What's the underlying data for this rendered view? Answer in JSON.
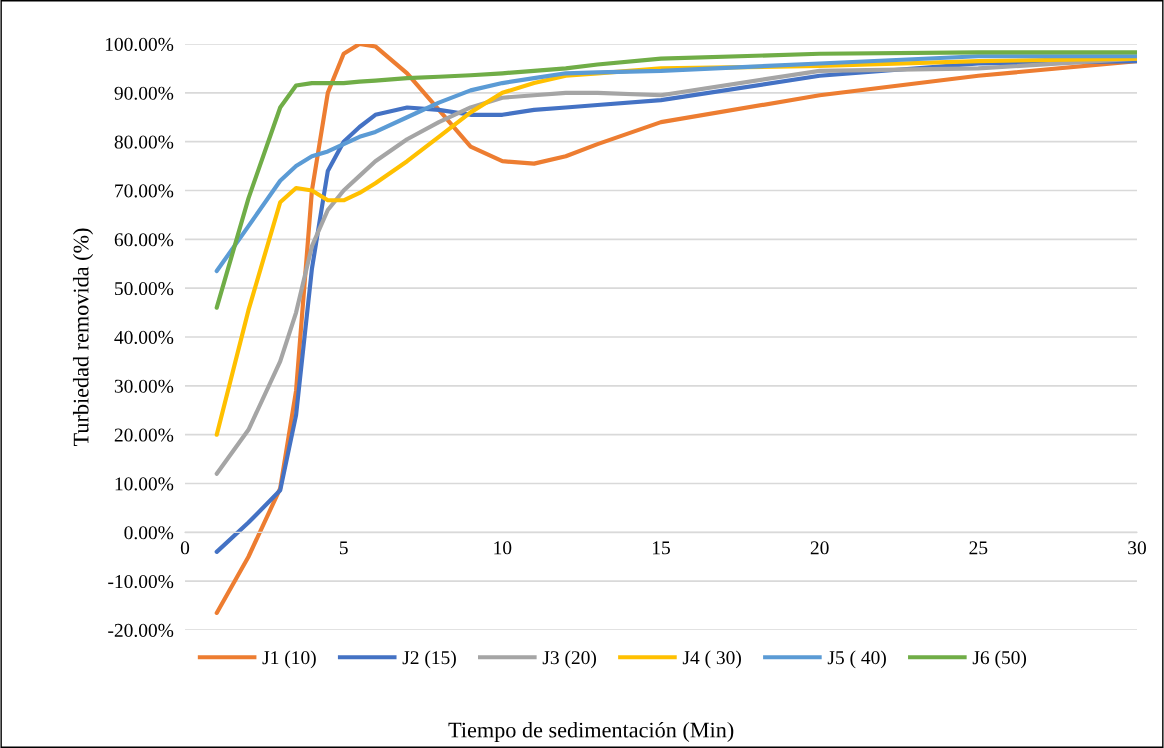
{
  "chart_data": {
    "type": "line",
    "xlabel": "Tiempo de sedimentación (Min)",
    "ylabel": "Turbiedad removida (%)",
    "x": [
      1,
      2,
      3,
      3.5,
      4,
      4.5,
      5,
      5.5,
      6,
      7,
      8,
      9,
      10,
      11,
      12,
      13,
      15,
      20,
      25,
      30
    ],
    "series": [
      {
        "name": "J1 (10)",
        "color": "#ed7d31",
        "values": [
          -16.5,
          -5,
          9,
          29,
          70,
          90,
          98,
          100,
          99.5,
          94,
          86.5,
          79,
          76,
          75.5,
          77,
          79.5,
          84,
          89.5,
          93.5,
          96.5
        ]
      },
      {
        "name": "J2 (15)",
        "color": "#4472c4",
        "values": [
          -4,
          2,
          8.6,
          24,
          54,
          74,
          80,
          83,
          85.5,
          87,
          86.5,
          85.5,
          85.5,
          86.5,
          87,
          87.5,
          88.5,
          93.5,
          96,
          96.5
        ]
      },
      {
        "name": "J3 (20)",
        "color": "#a5a5a5",
        "values": [
          12,
          21,
          35,
          45,
          58.6,
          66,
          70,
          73,
          76,
          80.5,
          84,
          87,
          89,
          89.5,
          90,
          90,
          89.5,
          94.5,
          95,
          97
        ]
      },
      {
        "name": "J4 ( 30)",
        "color": "#ffc000",
        "values": [
          20,
          45.5,
          67.6,
          70.5,
          70,
          68,
          68,
          69.5,
          71.5,
          76,
          81,
          86,
          90,
          92,
          93.5,
          94,
          95,
          95.5,
          96.5,
          97
        ]
      },
      {
        "name": "J5 ( 40)",
        "color": "#5b9bd5",
        "values": [
          53.5,
          62.7,
          72,
          75,
          77,
          78,
          79.5,
          81,
          82,
          85,
          88,
          90.5,
          92,
          93,
          94,
          94.2,
          94.5,
          96,
          97.5,
          97.5
        ]
      },
      {
        "name": "J6 (50)",
        "color": "#70ad47",
        "values": [
          46,
          68.4,
          87,
          91.5,
          92,
          92,
          92,
          92.3,
          92.5,
          93,
          93.3,
          93.6,
          94,
          94.5,
          95,
          95.8,
          97,
          98,
          98.3,
          98.3
        ]
      }
    ],
    "xlim": [
      0,
      30
    ],
    "xticks": [
      0,
      5,
      10,
      15,
      20,
      25,
      30
    ],
    "ylim": [
      -20,
      100
    ],
    "yticks": [
      {
        "value": -20,
        "label": "-20.00%"
      },
      {
        "value": -10,
        "label": "-10.00%"
      },
      {
        "value": 0,
        "label": "0.00%"
      },
      {
        "value": 10,
        "label": "10.00%"
      },
      {
        "value": 20,
        "label": "20.00%"
      },
      {
        "value": 30,
        "label": "30.00%"
      },
      {
        "value": 40,
        "label": "40.00%"
      },
      {
        "value": 50,
        "label": "50.00%"
      },
      {
        "value": 60,
        "label": "60.00%"
      },
      {
        "value": 70,
        "label": "70.00%"
      },
      {
        "value": 80,
        "label": "80.00%"
      },
      {
        "value": 90,
        "label": "90.00%"
      },
      {
        "value": 100,
        "label": "100.00%"
      }
    ],
    "grid": "y",
    "legend": "bottom",
    "marker": "none",
    "line_style": "solid"
  }
}
